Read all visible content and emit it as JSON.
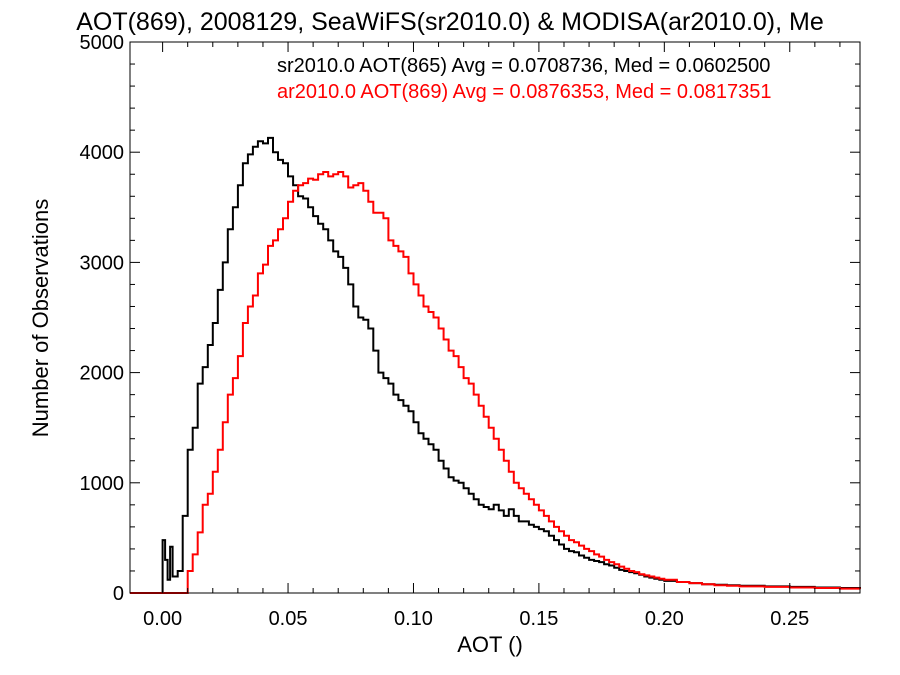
{
  "chart_data": {
    "type": "line",
    "title": "AOT(869), 2008129, SeaWiFS(sr2010.0) & MODISA(ar2010.0), Me",
    "xlabel": "AOT ()",
    "ylabel": "Number of Observations",
    "xlim": [
      -0.013,
      0.278
    ],
    "ylim": [
      0,
      5000
    ],
    "xticks": [
      0.0,
      0.05,
      0.1,
      0.15,
      0.2,
      0.25
    ],
    "xtick_labels": [
      "0.00",
      "0.05",
      "0.10",
      "0.15",
      "0.20",
      "0.25"
    ],
    "yticks": [
      0,
      1000,
      2000,
      3000,
      4000,
      5000
    ],
    "ytick_labels": [
      "0",
      "1000",
      "2000",
      "3000",
      "4000",
      "5000"
    ],
    "grid": false,
    "legend_position": "top-right",
    "series": [
      {
        "name": "sr2010.0 AOT(865) Avg = 0.0708736, Med = 0.0602500",
        "color": "#000000",
        "points": [
          [
            -0.013,
            0
          ],
          [
            -0.001,
            0
          ],
          [
            0.0,
            480
          ],
          [
            0.001,
            300
          ],
          [
            0.002,
            120
          ],
          [
            0.003,
            420
          ],
          [
            0.004,
            150
          ],
          [
            0.006,
            200
          ],
          [
            0.008,
            700
          ],
          [
            0.01,
            1300
          ],
          [
            0.012,
            1500
          ],
          [
            0.014,
            1900
          ],
          [
            0.016,
            2050
          ],
          [
            0.018,
            2250
          ],
          [
            0.02,
            2450
          ],
          [
            0.022,
            2750
          ],
          [
            0.024,
            3000
          ],
          [
            0.026,
            3300
          ],
          [
            0.028,
            3500
          ],
          [
            0.03,
            3700
          ],
          [
            0.032,
            3900
          ],
          [
            0.034,
            3980
          ],
          [
            0.036,
            4050
          ],
          [
            0.038,
            4100
          ],
          [
            0.04,
            4080
          ],
          [
            0.042,
            4130
          ],
          [
            0.044,
            4000
          ],
          [
            0.046,
            3930
          ],
          [
            0.048,
            3900
          ],
          [
            0.05,
            3780
          ],
          [
            0.052,
            3700
          ],
          [
            0.054,
            3600
          ],
          [
            0.056,
            3580
          ],
          [
            0.058,
            3500
          ],
          [
            0.06,
            3420
          ],
          [
            0.062,
            3350
          ],
          [
            0.064,
            3300
          ],
          [
            0.066,
            3200
          ],
          [
            0.068,
            3100
          ],
          [
            0.07,
            3050
          ],
          [
            0.072,
            2950
          ],
          [
            0.074,
            2800
          ],
          [
            0.076,
            2600
          ],
          [
            0.078,
            2500
          ],
          [
            0.08,
            2480
          ],
          [
            0.082,
            2400
          ],
          [
            0.084,
            2200
          ],
          [
            0.086,
            2000
          ],
          [
            0.088,
            1950
          ],
          [
            0.09,
            1900
          ],
          [
            0.092,
            1800
          ],
          [
            0.094,
            1750
          ],
          [
            0.096,
            1700
          ],
          [
            0.098,
            1650
          ],
          [
            0.1,
            1550
          ],
          [
            0.102,
            1450
          ],
          [
            0.104,
            1400
          ],
          [
            0.106,
            1350
          ],
          [
            0.108,
            1300
          ],
          [
            0.11,
            1200
          ],
          [
            0.112,
            1130
          ],
          [
            0.114,
            1050
          ],
          [
            0.116,
            1020
          ],
          [
            0.118,
            1000
          ],
          [
            0.12,
            950
          ],
          [
            0.122,
            900
          ],
          [
            0.124,
            850
          ],
          [
            0.126,
            800
          ],
          [
            0.128,
            780
          ],
          [
            0.13,
            760
          ],
          [
            0.132,
            800
          ],
          [
            0.134,
            750
          ],
          [
            0.136,
            700
          ],
          [
            0.138,
            760
          ],
          [
            0.14,
            700
          ],
          [
            0.142,
            650
          ],
          [
            0.144,
            650
          ],
          [
            0.146,
            620
          ],
          [
            0.148,
            600
          ],
          [
            0.15,
            580
          ],
          [
            0.152,
            560
          ],
          [
            0.154,
            520
          ],
          [
            0.156,
            480
          ],
          [
            0.158,
            440
          ],
          [
            0.16,
            400
          ],
          [
            0.162,
            380
          ],
          [
            0.164,
            370
          ],
          [
            0.166,
            340
          ],
          [
            0.168,
            320
          ],
          [
            0.17,
            300
          ],
          [
            0.172,
            290
          ],
          [
            0.174,
            280
          ],
          [
            0.176,
            260
          ],
          [
            0.178,
            250
          ],
          [
            0.18,
            230
          ],
          [
            0.182,
            210
          ],
          [
            0.184,
            200
          ],
          [
            0.186,
            190
          ],
          [
            0.188,
            180
          ],
          [
            0.19,
            165
          ],
          [
            0.192,
            150
          ],
          [
            0.194,
            140
          ],
          [
            0.196,
            130
          ],
          [
            0.198,
            120
          ],
          [
            0.2,
            110
          ],
          [
            0.205,
            100
          ],
          [
            0.21,
            90
          ],
          [
            0.215,
            80
          ],
          [
            0.22,
            75
          ],
          [
            0.225,
            70
          ],
          [
            0.23,
            65
          ],
          [
            0.24,
            60
          ],
          [
            0.25,
            55
          ],
          [
            0.26,
            50
          ],
          [
            0.27,
            45
          ],
          [
            0.278,
            40
          ]
        ]
      },
      {
        "name": "ar2010.0 AOT(869) Avg = 0.0876353, Med = 0.0817351",
        "color": "#ff0000",
        "points": [
          [
            -0.013,
            0
          ],
          [
            0.008,
            0
          ],
          [
            0.01,
            200
          ],
          [
            0.012,
            350
          ],
          [
            0.014,
            550
          ],
          [
            0.016,
            800
          ],
          [
            0.018,
            900
          ],
          [
            0.02,
            1100
          ],
          [
            0.022,
            1300
          ],
          [
            0.024,
            1550
          ],
          [
            0.026,
            1800
          ],
          [
            0.028,
            1950
          ],
          [
            0.03,
            2150
          ],
          [
            0.032,
            2450
          ],
          [
            0.034,
            2600
          ],
          [
            0.036,
            2700
          ],
          [
            0.038,
            2900
          ],
          [
            0.04,
            2980
          ],
          [
            0.042,
            3150
          ],
          [
            0.044,
            3200
          ],
          [
            0.046,
            3300
          ],
          [
            0.048,
            3400
          ],
          [
            0.05,
            3550
          ],
          [
            0.052,
            3650
          ],
          [
            0.054,
            3700
          ],
          [
            0.056,
            3720
          ],
          [
            0.058,
            3760
          ],
          [
            0.06,
            3750
          ],
          [
            0.062,
            3800
          ],
          [
            0.064,
            3820
          ],
          [
            0.066,
            3780
          ],
          [
            0.068,
            3800
          ],
          [
            0.07,
            3820
          ],
          [
            0.072,
            3780
          ],
          [
            0.074,
            3680
          ],
          [
            0.076,
            3700
          ],
          [
            0.078,
            3720
          ],
          [
            0.08,
            3650
          ],
          [
            0.082,
            3550
          ],
          [
            0.084,
            3450
          ],
          [
            0.086,
            3450
          ],
          [
            0.088,
            3400
          ],
          [
            0.09,
            3200
          ],
          [
            0.092,
            3150
          ],
          [
            0.094,
            3100
          ],
          [
            0.096,
            3050
          ],
          [
            0.098,
            2900
          ],
          [
            0.1,
            2800
          ],
          [
            0.102,
            2700
          ],
          [
            0.104,
            2600
          ],
          [
            0.106,
            2550
          ],
          [
            0.108,
            2500
          ],
          [
            0.11,
            2400
          ],
          [
            0.112,
            2300
          ],
          [
            0.114,
            2200
          ],
          [
            0.116,
            2150
          ],
          [
            0.118,
            2050
          ],
          [
            0.12,
            1950
          ],
          [
            0.122,
            1900
          ],
          [
            0.124,
            1800
          ],
          [
            0.126,
            1700
          ],
          [
            0.128,
            1600
          ],
          [
            0.13,
            1500
          ],
          [
            0.132,
            1400
          ],
          [
            0.134,
            1300
          ],
          [
            0.136,
            1200
          ],
          [
            0.138,
            1100
          ],
          [
            0.14,
            1000
          ],
          [
            0.142,
            950
          ],
          [
            0.144,
            900
          ],
          [
            0.146,
            850
          ],
          [
            0.148,
            800
          ],
          [
            0.15,
            750
          ],
          [
            0.152,
            700
          ],
          [
            0.154,
            650
          ],
          [
            0.156,
            600
          ],
          [
            0.158,
            560
          ],
          [
            0.16,
            520
          ],
          [
            0.162,
            480
          ],
          [
            0.164,
            460
          ],
          [
            0.166,
            430
          ],
          [
            0.168,
            400
          ],
          [
            0.17,
            380
          ],
          [
            0.172,
            350
          ],
          [
            0.174,
            330
          ],
          [
            0.176,
            300
          ],
          [
            0.178,
            280
          ],
          [
            0.18,
            260
          ],
          [
            0.182,
            240
          ],
          [
            0.184,
            220
          ],
          [
            0.186,
            200
          ],
          [
            0.188,
            190
          ],
          [
            0.19,
            170
          ],
          [
            0.192,
            160
          ],
          [
            0.194,
            150
          ],
          [
            0.196,
            140
          ],
          [
            0.198,
            130
          ],
          [
            0.2,
            120
          ],
          [
            0.205,
            100
          ],
          [
            0.21,
            90
          ],
          [
            0.215,
            80
          ],
          [
            0.22,
            70
          ],
          [
            0.225,
            65
          ],
          [
            0.23,
            60
          ],
          [
            0.24,
            55
          ],
          [
            0.25,
            50
          ],
          [
            0.26,
            45
          ],
          [
            0.27,
            40
          ],
          [
            0.278,
            35
          ]
        ]
      }
    ]
  }
}
